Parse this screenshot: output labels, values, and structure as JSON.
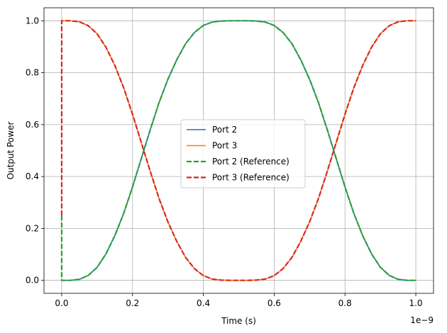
{
  "chart_data": {
    "type": "line",
    "title": "",
    "xlabel": "Time (s)",
    "ylabel": "Output Power",
    "x_offset_label": "1e−9",
    "xlim": [
      -0.05,
      1.05
    ],
    "ylim": [
      -0.05,
      1.05
    ],
    "x_ticks": [
      0.0,
      0.2,
      0.4,
      0.6,
      0.8,
      1.0
    ],
    "x_tick_labels": [
      "0.0",
      "0.2",
      "0.4",
      "0.6",
      "0.8",
      "1.0"
    ],
    "y_ticks": [
      0.0,
      0.2,
      0.4,
      0.6,
      0.8,
      1.0
    ],
    "y_tick_labels": [
      "0.0",
      "0.2",
      "0.4",
      "0.6",
      "0.8",
      "1.0"
    ],
    "grid": true,
    "legend_position": "center",
    "x": [
      0.0,
      0.025,
      0.05,
      0.075,
      0.1,
      0.125,
      0.15,
      0.175,
      0.2,
      0.225,
      0.25,
      0.275,
      0.3,
      0.325,
      0.35,
      0.375,
      0.4,
      0.425,
      0.45,
      0.475,
      0.5,
      0.525,
      0.55,
      0.575,
      0.6,
      0.625,
      0.65,
      0.675,
      0.7,
      0.725,
      0.75,
      0.775,
      0.8,
      0.825,
      0.85,
      0.875,
      0.9,
      0.925,
      0.95,
      0.975,
      1.0
    ],
    "series": [
      {
        "name": "Port 2",
        "color": "#1f77b4",
        "style": "solid",
        "values": [
          0.0,
          0.0,
          0.004,
          0.019,
          0.05,
          0.102,
          0.172,
          0.258,
          0.36,
          0.47,
          0.58,
          0.685,
          0.775,
          0.85,
          0.912,
          0.955,
          0.982,
          0.995,
          0.999,
          1.0,
          1.0,
          1.0,
          0.999,
          0.995,
          0.982,
          0.955,
          0.912,
          0.85,
          0.775,
          0.685,
          0.58,
          0.47,
          0.36,
          0.258,
          0.172,
          0.102,
          0.05,
          0.019,
          0.004,
          0.0,
          0.0
        ]
      },
      {
        "name": "Port 3",
        "color": "#ff7f0e",
        "style": "solid",
        "values": [
          1.0,
          1.0,
          0.996,
          0.981,
          0.95,
          0.898,
          0.828,
          0.742,
          0.64,
          0.53,
          0.42,
          0.315,
          0.225,
          0.15,
          0.088,
          0.045,
          0.018,
          0.005,
          0.001,
          0.0,
          0.0,
          0.0,
          0.001,
          0.005,
          0.018,
          0.045,
          0.088,
          0.15,
          0.225,
          0.315,
          0.42,
          0.53,
          0.64,
          0.742,
          0.828,
          0.898,
          0.95,
          0.981,
          0.996,
          1.0,
          1.0
        ]
      },
      {
        "name": "Port 2 (Reference)",
        "color": "#2ca02c",
        "style": "dashed",
        "values": [
          0.0,
          0.0,
          0.004,
          0.019,
          0.05,
          0.102,
          0.172,
          0.258,
          0.36,
          0.47,
          0.58,
          0.685,
          0.775,
          0.85,
          0.912,
          0.955,
          0.982,
          0.995,
          0.999,
          1.0,
          1.0,
          1.0,
          0.999,
          0.995,
          0.982,
          0.955,
          0.912,
          0.85,
          0.775,
          0.685,
          0.58,
          0.47,
          0.36,
          0.258,
          0.172,
          0.102,
          0.05,
          0.019,
          0.004,
          0.0,
          0.0
        ],
        "initial_value": 0.25
      },
      {
        "name": "Port 3 (Reference)",
        "color": "#d62728",
        "style": "dashed",
        "values": [
          1.0,
          1.0,
          0.996,
          0.981,
          0.95,
          0.898,
          0.828,
          0.742,
          0.64,
          0.53,
          0.42,
          0.315,
          0.225,
          0.15,
          0.088,
          0.045,
          0.018,
          0.005,
          0.001,
          0.0,
          0.0,
          0.0,
          0.001,
          0.005,
          0.018,
          0.045,
          0.088,
          0.15,
          0.225,
          0.315,
          0.42,
          0.53,
          0.64,
          0.742,
          0.828,
          0.898,
          0.95,
          0.981,
          0.996,
          1.0,
          1.0
        ],
        "initial_value": 0.25
      }
    ]
  }
}
